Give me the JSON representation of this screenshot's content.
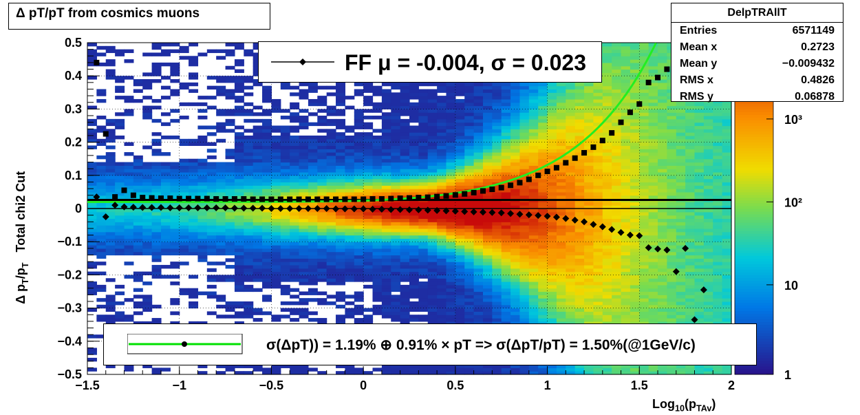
{
  "chart_data": {
    "type": "heatmap",
    "title": "Δ pT/pT from cosmics muons",
    "xlabel": "Log10(pTAv)",
    "ylabel": "Δ pT/pT   Total chi2 Cut",
    "xlim": [
      -1.5,
      2.0
    ],
    "ylim": [
      -0.5,
      0.5
    ],
    "x_ticks": [
      "−1.5",
      "−1",
      "−0.5",
      "0",
      "0.5",
      "1",
      "1.5",
      "2"
    ],
    "y_ticks": [
      "−0.5",
      "−0.4",
      "−0.3",
      "−0.2",
      "−0.1",
      "0",
      "0.1",
      "0.2",
      "0.3",
      "0.4",
      "0.5"
    ],
    "z_scale": "log",
    "z_ticks": [
      "1",
      "10",
      "10²",
      "10³"
    ],
    "grid": true,
    "stats": {
      "name": "DelpTRAllT",
      "entries_label": "Entries",
      "entries": "6571149",
      "meanx_label": "Mean x",
      "meanx": "0.2723",
      "meany_label": "Mean y",
      "meany": "−0.009432",
      "rmsx_label": "RMS x",
      "rmsx": "0.4826",
      "rmsy_label": "RMS y",
      "rmsy": "0.06878"
    },
    "legend_ff": "FF μ = -0.004, σ =   0.023",
    "legend_fit": "σ(ΔpT)) =  1.19% ⊕  0.91% × pT => σ(ΔpT/pT) =  1.50%(@1GeV/c)",
    "series": [
      {
        "marker": "square",
        "x": [
          -1.45,
          -1.4,
          -1.35,
          -1.3,
          -1.25,
          -1.2,
          -1.15,
          -1.1,
          -1.05,
          -1.0,
          -0.95,
          -0.9,
          -0.85,
          -0.8,
          -0.75,
          -0.7,
          -0.65,
          -0.6,
          -0.55,
          -0.5,
          -0.45,
          -0.4,
          -0.35,
          -0.3,
          -0.25,
          -0.2,
          -0.15,
          -0.1,
          -0.05,
          0,
          0.05,
          0.1,
          0.15,
          0.2,
          0.25,
          0.3,
          0.35,
          0.4,
          0.45,
          0.5,
          0.55,
          0.6,
          0.65,
          0.7,
          0.75,
          0.8,
          0.85,
          0.9,
          0.95,
          1.0,
          1.05,
          1.1,
          1.15,
          1.2,
          1.25,
          1.3,
          1.35,
          1.4,
          1.45,
          1.5,
          1.55,
          1.6,
          1.65,
          1.7,
          1.75,
          1.8,
          1.85
        ],
        "values": [
          0.44,
          0.225,
          0.035,
          0.055,
          0.04,
          0.033,
          0.032,
          0.031,
          0.031,
          0.03,
          0.03,
          0.03,
          0.03,
          0.029,
          0.029,
          0.029,
          0.029,
          0.028,
          0.028,
          0.028,
          0.028,
          0.028,
          0.028,
          0.028,
          0.028,
          0.028,
          0.028,
          0.028,
          0.028,
          0.028,
          0.029,
          0.029,
          0.03,
          0.031,
          0.032,
          0.033,
          0.034,
          0.036,
          0.038,
          0.041,
          0.044,
          0.048,
          0.053,
          0.058,
          0.063,
          0.07,
          0.078,
          0.088,
          0.1,
          0.112,
          0.123,
          0.138,
          0.152,
          0.168,
          0.185,
          0.205,
          0.228,
          0.26,
          0.29,
          0.315,
          0.38,
          0.395,
          0.42,
          0.41,
          0.44,
          0.46,
          0.46
        ]
      },
      {
        "marker": "diamond",
        "x": [
          -1.45,
          -1.4,
          -1.35,
          -1.3,
          -1.25,
          -1.2,
          -1.15,
          -1.1,
          -1.05,
          -1.0,
          -0.95,
          -0.9,
          -0.85,
          -0.8,
          -0.75,
          -0.7,
          -0.65,
          -0.6,
          -0.55,
          -0.5,
          -0.45,
          -0.4,
          -0.35,
          -0.3,
          -0.25,
          -0.2,
          -0.15,
          -0.1,
          -0.05,
          0,
          0.05,
          0.1,
          0.15,
          0.2,
          0.25,
          0.3,
          0.35,
          0.4,
          0.45,
          0.5,
          0.55,
          0.6,
          0.65,
          0.7,
          0.75,
          0.8,
          0.85,
          0.9,
          0.95,
          1.0,
          1.05,
          1.1,
          1.15,
          1.2,
          1.25,
          1.3,
          1.35,
          1.4,
          1.45,
          1.5,
          1.55,
          1.6,
          1.65,
          1.7,
          1.75,
          1.8,
          1.85
        ],
        "values": [
          0.035,
          -0.025,
          0.01,
          0.005,
          0.004,
          0.003,
          0.003,
          0.003,
          0.002,
          0.002,
          0.002,
          0.002,
          0.002,
          0.002,
          0.002,
          0.001,
          0.001,
          0.001,
          0.001,
          0.0,
          0.0,
          0.0,
          0.0,
          0.0,
          0.0,
          0.0,
          -0.001,
          -0.001,
          -0.001,
          -0.001,
          -0.002,
          -0.002,
          -0.003,
          -0.003,
          -0.004,
          -0.004,
          -0.005,
          -0.006,
          -0.007,
          -0.008,
          -0.009,
          -0.01,
          -0.011,
          -0.012,
          -0.013,
          -0.015,
          -0.017,
          -0.019,
          -0.021,
          -0.023,
          -0.026,
          -0.03,
          -0.035,
          -0.04,
          -0.048,
          -0.055,
          -0.063,
          -0.072,
          -0.08,
          -0.082,
          -0.118,
          -0.122,
          -0.125,
          -0.19,
          -0.12,
          -0.335,
          -0.245
        ]
      }
    ],
    "fit_curve": {
      "mu": -0.004,
      "sigma0": 0.0119,
      "slope": 0.0091
    },
    "constant_line": 0.026
  }
}
